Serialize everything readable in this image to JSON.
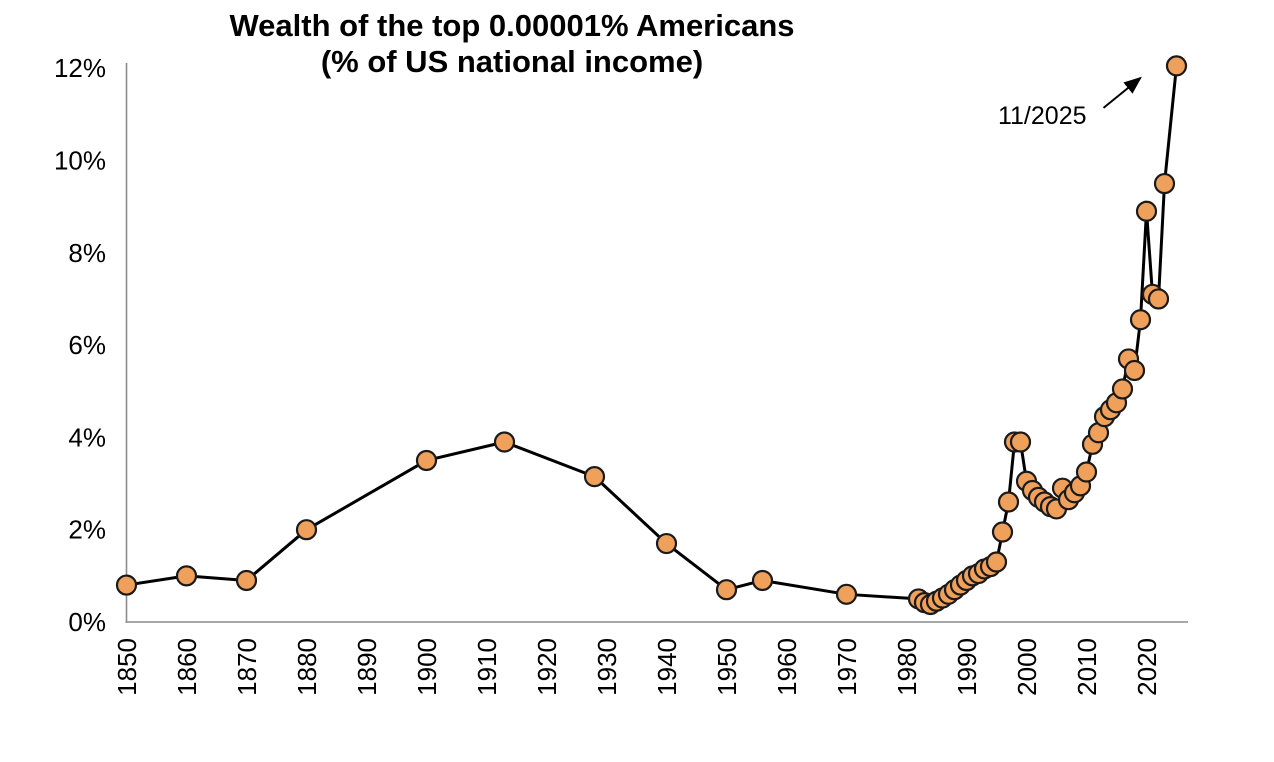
{
  "page": {
    "background": "#ffffff"
  },
  "chart_data": {
    "type": "line",
    "title": "Wealth of the top 0.00001% Americans",
    "subtitle": "(% of US national income)",
    "xlabel": "",
    "ylabel": "",
    "grid": false,
    "legend_position": "none",
    "colors": {
      "marker_fill": "#efa05b",
      "marker_stroke": "#1a1a1a",
      "line": "#000000",
      "axis": "#8c8c8c",
      "text": "#000000"
    },
    "x_axis": {
      "tick_labels": [
        "1850",
        "1860",
        "1870",
        "1880",
        "1890",
        "1900",
        "1910",
        "1920",
        "1930",
        "1940",
        "1950",
        "1960",
        "1970",
        "1980",
        "1990",
        "2000",
        "2010",
        "2020"
      ],
      "tick_values": [
        1850,
        1860,
        1870,
        1880,
        1890,
        1900,
        1910,
        1920,
        1930,
        1940,
        1950,
        1960,
        1970,
        1980,
        1990,
        2000,
        2010,
        2020
      ],
      "range": [
        1850,
        2026
      ]
    },
    "y_axis": {
      "tick_labels": [
        "0%",
        "2%",
        "4%",
        "6%",
        "8%",
        "10%",
        "12%"
      ],
      "tick_values": [
        0,
        2,
        4,
        6,
        8,
        10,
        12
      ],
      "range": [
        0,
        12
      ],
      "unit": "% of US national income"
    },
    "series": [
      {
        "name": "Wealth of the top 0.00001% Americans (% of US national income)",
        "points": [
          [
            1850,
            0.8
          ],
          [
            1860,
            1.0
          ],
          [
            1870,
            0.9
          ],
          [
            1880,
            2.0
          ],
          [
            1900,
            3.5
          ],
          [
            1913,
            3.9
          ],
          [
            1928,
            3.15
          ],
          [
            1940,
            1.7
          ],
          [
            1950,
            0.7
          ],
          [
            1956,
            0.9
          ],
          [
            1970,
            0.6
          ],
          [
            1982,
            0.5
          ],
          [
            1983,
            0.42
          ],
          [
            1984,
            0.38
          ],
          [
            1985,
            0.45
          ],
          [
            1986,
            0.52
          ],
          [
            1987,
            0.6
          ],
          [
            1988,
            0.7
          ],
          [
            1989,
            0.8
          ],
          [
            1990,
            0.9
          ],
          [
            1991,
            1.0
          ],
          [
            1992,
            1.05
          ],
          [
            1993,
            1.15
          ],
          [
            1994,
            1.2
          ],
          [
            1995,
            1.3
          ],
          [
            1996,
            1.95
          ],
          [
            1997,
            2.6
          ],
          [
            1998,
            3.9
          ],
          [
            1999,
            3.9
          ],
          [
            2000,
            3.05
          ],
          [
            2001,
            2.85
          ],
          [
            2002,
            2.7
          ],
          [
            2003,
            2.6
          ],
          [
            2004,
            2.5
          ],
          [
            2005,
            2.45
          ],
          [
            2006,
            2.9
          ],
          [
            2007,
            2.65
          ],
          [
            2008,
            2.8
          ],
          [
            2009,
            2.95
          ],
          [
            2010,
            3.25
          ],
          [
            2011,
            3.85
          ],
          [
            2012,
            4.1
          ],
          [
            2013,
            4.45
          ],
          [
            2014,
            4.6
          ],
          [
            2015,
            4.75
          ],
          [
            2016,
            5.05
          ],
          [
            2017,
            5.7
          ],
          [
            2018,
            5.45
          ],
          [
            2019,
            6.55
          ],
          [
            2020,
            8.9
          ],
          [
            2021,
            7.1
          ],
          [
            2022,
            7.0
          ],
          [
            2023,
            9.5
          ],
          [
            2025,
            12.05
          ]
        ]
      }
    ],
    "annotation": {
      "label": "11/2025",
      "target_year": 2025,
      "target_value": 12.05
    }
  }
}
